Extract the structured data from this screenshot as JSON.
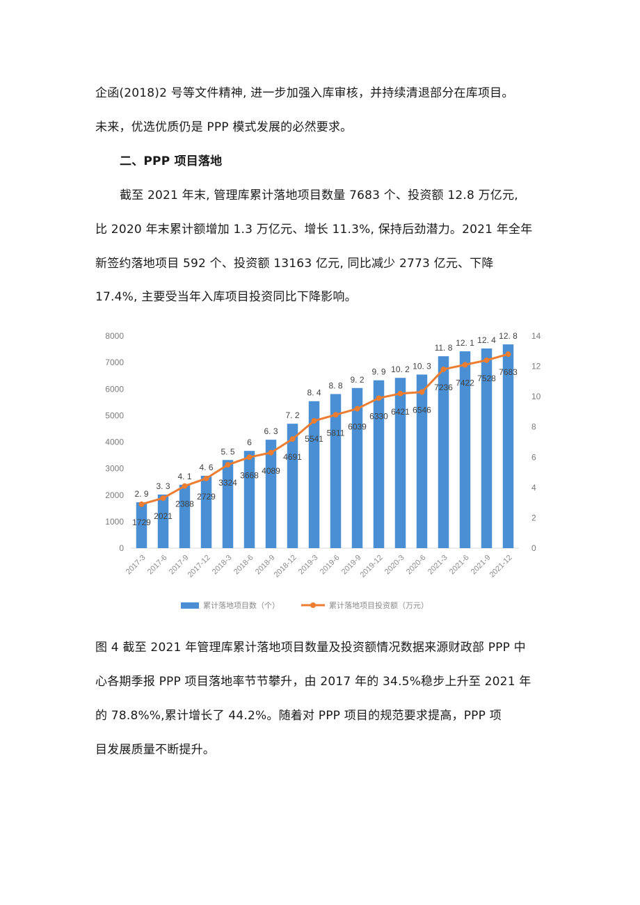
{
  "document": {
    "paragraph1": {
      "line1": "企函(2018)2 号等文件精神, 进一步加强入库审核，并持续清退部分在库项目。",
      "line2": "未来，优选优质仍是 PPP 模式发展的必然要求。"
    },
    "section_heading": "二、PPP 项目落地",
    "paragraph2": {
      "line1": "截至 2021 年末, 管理库累计落地项目数量 7683 个、投资额 12.8 万亿元,",
      "line2": "比 2020 年末累计额增加 1.3 万亿元、增长 11.3%, 保持后劲潜力。2021 年全年",
      "line3": "新签约落地项目 592 个、投资额 13163 亿元, 同比减少 2773 亿元、下降",
      "line4": "17.4%, 主要受当年入库项目投资同比下降影响。"
    },
    "paragraph3": {
      "line1": "图 4 截至 2021 年管理库累计落地项目数量及投资额情况数据来源财政部 PPP 中",
      "line2": "心各期季报 PPP 项目落地率节节攀升，由 2017 年的 34.5%稳步上升至 2021 年",
      "line3": "的 78.8%%,累计增长了 44.2%。随着对 PPP 项目的规范要求提高，PPP 项",
      "line4": "目发展质量不断提升。"
    }
  },
  "colors": {
    "bar": "#4a8fd4",
    "line": "#ed7d31",
    "axis_text": "#7a7a7a",
    "label_text": "#404040"
  },
  "chart_data": {
    "type": "bar+line",
    "title": "",
    "categories": [
      "2017-3",
      "2017-6",
      "2017-9",
      "2017-12",
      "2018-3",
      "2018-6",
      "2018-9",
      "2018-12",
      "2019-3",
      "2019-6",
      "2019-9",
      "2019-12",
      "2020-3",
      "2020-6",
      "2021-3",
      "2021-6",
      "2021-9",
      "2021-12"
    ],
    "series": [
      {
        "name": "累计落地项目数（个）",
        "type": "bar",
        "axis": "left",
        "values": [
          1729,
          2021,
          2388,
          2729,
          3324,
          3668,
          4089,
          4691,
          5541,
          5811,
          6039,
          6330,
          6421,
          6546,
          7236,
          7422,
          7528,
          7683
        ]
      },
      {
        "name": "累计落地项目投资额（万元）",
        "type": "line",
        "axis": "right",
        "values": [
          2.9,
          3.3,
          4.1,
          4.6,
          5.5,
          6,
          6.3,
          7.2,
          8.4,
          8.8,
          9.2,
          9.9,
          10.2,
          10.3,
          11.8,
          12.1,
          12.4,
          12.8
        ]
      }
    ],
    "y_left": {
      "min": 0,
      "max": 8000,
      "ticks": [
        0,
        1000,
        2000,
        3000,
        4000,
        5000,
        6000,
        7000,
        8000
      ]
    },
    "y_right": {
      "min": 0,
      "max": 14,
      "ticks": [
        0,
        2,
        4,
        6,
        8,
        10,
        12,
        14
      ]
    },
    "legend_position": "bottom",
    "grid": false
  }
}
